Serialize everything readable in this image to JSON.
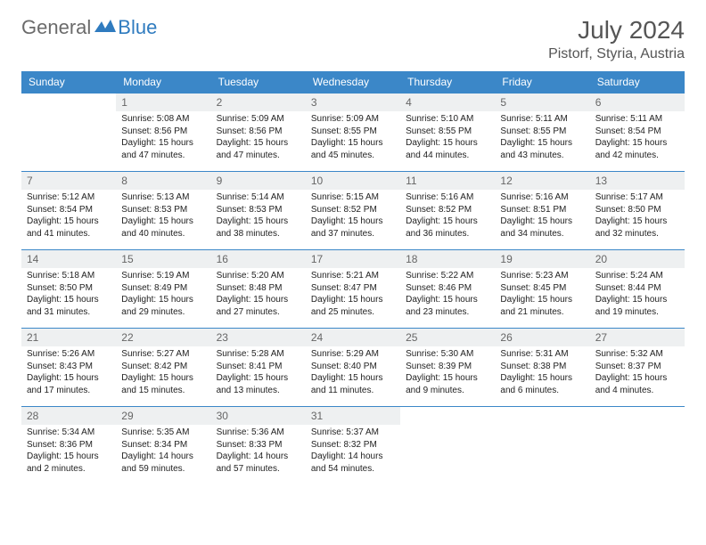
{
  "logo": {
    "part1": "General",
    "part2": "Blue"
  },
  "title": "July 2024",
  "location": "Pistorf, Styria, Austria",
  "colors": {
    "header_bg": "#3b87c8",
    "header_text": "#ffffff",
    "daynum_bg": "#eef0f1",
    "daynum_text": "#666666",
    "border": "#3b87c8",
    "logo_gray": "#6b6b6b",
    "logo_blue": "#2f7bbf"
  },
  "day_headers": [
    "Sunday",
    "Monday",
    "Tuesday",
    "Wednesday",
    "Thursday",
    "Friday",
    "Saturday"
  ],
  "weeks": [
    [
      {
        "n": "",
        "sr": "",
        "ss": "",
        "dl": ""
      },
      {
        "n": "1",
        "sr": "Sunrise: 5:08 AM",
        "ss": "Sunset: 8:56 PM",
        "dl": "Daylight: 15 hours and 47 minutes."
      },
      {
        "n": "2",
        "sr": "Sunrise: 5:09 AM",
        "ss": "Sunset: 8:56 PM",
        "dl": "Daylight: 15 hours and 47 minutes."
      },
      {
        "n": "3",
        "sr": "Sunrise: 5:09 AM",
        "ss": "Sunset: 8:55 PM",
        "dl": "Daylight: 15 hours and 45 minutes."
      },
      {
        "n": "4",
        "sr": "Sunrise: 5:10 AM",
        "ss": "Sunset: 8:55 PM",
        "dl": "Daylight: 15 hours and 44 minutes."
      },
      {
        "n": "5",
        "sr": "Sunrise: 5:11 AM",
        "ss": "Sunset: 8:55 PM",
        "dl": "Daylight: 15 hours and 43 minutes."
      },
      {
        "n": "6",
        "sr": "Sunrise: 5:11 AM",
        "ss": "Sunset: 8:54 PM",
        "dl": "Daylight: 15 hours and 42 minutes."
      }
    ],
    [
      {
        "n": "7",
        "sr": "Sunrise: 5:12 AM",
        "ss": "Sunset: 8:54 PM",
        "dl": "Daylight: 15 hours and 41 minutes."
      },
      {
        "n": "8",
        "sr": "Sunrise: 5:13 AM",
        "ss": "Sunset: 8:53 PM",
        "dl": "Daylight: 15 hours and 40 minutes."
      },
      {
        "n": "9",
        "sr": "Sunrise: 5:14 AM",
        "ss": "Sunset: 8:53 PM",
        "dl": "Daylight: 15 hours and 38 minutes."
      },
      {
        "n": "10",
        "sr": "Sunrise: 5:15 AM",
        "ss": "Sunset: 8:52 PM",
        "dl": "Daylight: 15 hours and 37 minutes."
      },
      {
        "n": "11",
        "sr": "Sunrise: 5:16 AM",
        "ss": "Sunset: 8:52 PM",
        "dl": "Daylight: 15 hours and 36 minutes."
      },
      {
        "n": "12",
        "sr": "Sunrise: 5:16 AM",
        "ss": "Sunset: 8:51 PM",
        "dl": "Daylight: 15 hours and 34 minutes."
      },
      {
        "n": "13",
        "sr": "Sunrise: 5:17 AM",
        "ss": "Sunset: 8:50 PM",
        "dl": "Daylight: 15 hours and 32 minutes."
      }
    ],
    [
      {
        "n": "14",
        "sr": "Sunrise: 5:18 AM",
        "ss": "Sunset: 8:50 PM",
        "dl": "Daylight: 15 hours and 31 minutes."
      },
      {
        "n": "15",
        "sr": "Sunrise: 5:19 AM",
        "ss": "Sunset: 8:49 PM",
        "dl": "Daylight: 15 hours and 29 minutes."
      },
      {
        "n": "16",
        "sr": "Sunrise: 5:20 AM",
        "ss": "Sunset: 8:48 PM",
        "dl": "Daylight: 15 hours and 27 minutes."
      },
      {
        "n": "17",
        "sr": "Sunrise: 5:21 AM",
        "ss": "Sunset: 8:47 PM",
        "dl": "Daylight: 15 hours and 25 minutes."
      },
      {
        "n": "18",
        "sr": "Sunrise: 5:22 AM",
        "ss": "Sunset: 8:46 PM",
        "dl": "Daylight: 15 hours and 23 minutes."
      },
      {
        "n": "19",
        "sr": "Sunrise: 5:23 AM",
        "ss": "Sunset: 8:45 PM",
        "dl": "Daylight: 15 hours and 21 minutes."
      },
      {
        "n": "20",
        "sr": "Sunrise: 5:24 AM",
        "ss": "Sunset: 8:44 PM",
        "dl": "Daylight: 15 hours and 19 minutes."
      }
    ],
    [
      {
        "n": "21",
        "sr": "Sunrise: 5:26 AM",
        "ss": "Sunset: 8:43 PM",
        "dl": "Daylight: 15 hours and 17 minutes."
      },
      {
        "n": "22",
        "sr": "Sunrise: 5:27 AM",
        "ss": "Sunset: 8:42 PM",
        "dl": "Daylight: 15 hours and 15 minutes."
      },
      {
        "n": "23",
        "sr": "Sunrise: 5:28 AM",
        "ss": "Sunset: 8:41 PM",
        "dl": "Daylight: 15 hours and 13 minutes."
      },
      {
        "n": "24",
        "sr": "Sunrise: 5:29 AM",
        "ss": "Sunset: 8:40 PM",
        "dl": "Daylight: 15 hours and 11 minutes."
      },
      {
        "n": "25",
        "sr": "Sunrise: 5:30 AM",
        "ss": "Sunset: 8:39 PM",
        "dl": "Daylight: 15 hours and 9 minutes."
      },
      {
        "n": "26",
        "sr": "Sunrise: 5:31 AM",
        "ss": "Sunset: 8:38 PM",
        "dl": "Daylight: 15 hours and 6 minutes."
      },
      {
        "n": "27",
        "sr": "Sunrise: 5:32 AM",
        "ss": "Sunset: 8:37 PM",
        "dl": "Daylight: 15 hours and 4 minutes."
      }
    ],
    [
      {
        "n": "28",
        "sr": "Sunrise: 5:34 AM",
        "ss": "Sunset: 8:36 PM",
        "dl": "Daylight: 15 hours and 2 minutes."
      },
      {
        "n": "29",
        "sr": "Sunrise: 5:35 AM",
        "ss": "Sunset: 8:34 PM",
        "dl": "Daylight: 14 hours and 59 minutes."
      },
      {
        "n": "30",
        "sr": "Sunrise: 5:36 AM",
        "ss": "Sunset: 8:33 PM",
        "dl": "Daylight: 14 hours and 57 minutes."
      },
      {
        "n": "31",
        "sr": "Sunrise: 5:37 AM",
        "ss": "Sunset: 8:32 PM",
        "dl": "Daylight: 14 hours and 54 minutes."
      },
      {
        "n": "",
        "sr": "",
        "ss": "",
        "dl": ""
      },
      {
        "n": "",
        "sr": "",
        "ss": "",
        "dl": ""
      },
      {
        "n": "",
        "sr": "",
        "ss": "",
        "dl": ""
      }
    ]
  ]
}
